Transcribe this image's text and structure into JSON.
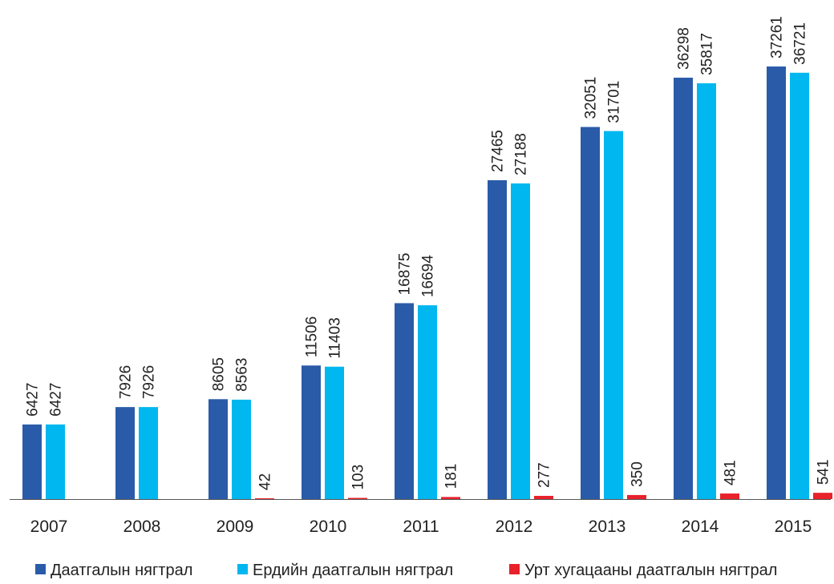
{
  "chart_data": {
    "type": "bar",
    "title": "",
    "xlabel": "",
    "ylabel": "",
    "categories": [
      "2007",
      "2008",
      "2009",
      "2010",
      "2011",
      "2012",
      "2013",
      "2014",
      "2015"
    ],
    "ylim": [
      0,
      40000
    ],
    "grid": false,
    "legend_position": "bottom",
    "series": [
      {
        "name": "Даатгалын нягтрал",
        "color": "#2a5ba8",
        "values": [
          6427,
          7926,
          8605,
          11506,
          16875,
          27465,
          32051,
          36298,
          37261
        ],
        "labels": [
          "6427",
          "7926",
          "8605",
          "11506",
          "16875",
          "27465",
          "32051",
          "36298",
          "37261"
        ]
      },
      {
        "name": "Ердийн даатгалын нягтрал",
        "color": "#00b7ef",
        "values": [
          6427,
          7926,
          8563,
          11403,
          16694,
          27188,
          31701,
          35817,
          36721
        ],
        "labels": [
          "6427",
          "7926",
          "8563",
          "11403",
          "16694",
          "27188",
          "31701",
          "35817",
          "36721"
        ]
      },
      {
        "name": "Урт хугацааны даатгалын нягтрал",
        "color": "#e8212b",
        "values": [
          null,
          null,
          42,
          103,
          181,
          277,
          350,
          481,
          541
        ],
        "labels": [
          "",
          "",
          "42",
          "103",
          "181",
          "277",
          "350",
          "481",
          "541"
        ]
      }
    ]
  }
}
